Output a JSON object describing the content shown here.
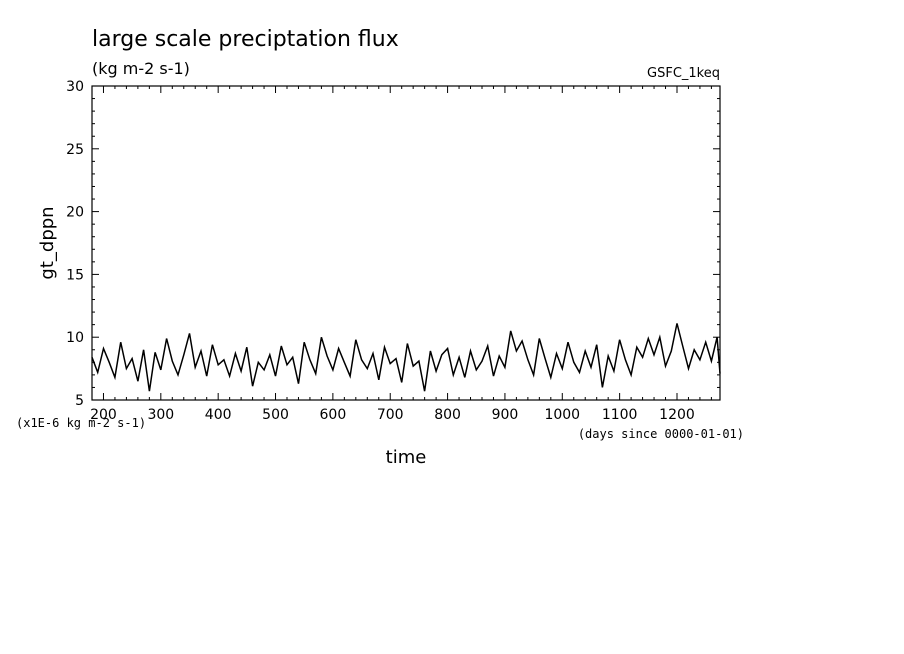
{
  "chart_data": {
    "type": "line",
    "title": "large scale preciptation flux",
    "subtitle": "(kg m-2 s-1)",
    "tag": "GSFC_1keq",
    "xlabel": "time",
    "ylabel": "gt_dppn",
    "x_unit_note": "(days since 0000-01-01)",
    "y_unit_note": "(x1E-6 kg m-2 s-1)",
    "xlim": [
      180,
      1275
    ],
    "ylim": [
      5,
      30
    ],
    "x_ticks": [
      200,
      300,
      400,
      500,
      600,
      700,
      800,
      900,
      1000,
      1100,
      1200
    ],
    "y_ticks": [
      5,
      10,
      15,
      20,
      25,
      30
    ],
    "grid": false,
    "line_color": "#000000",
    "series": [
      {
        "x": [
          180,
          190,
          200,
          210,
          220,
          230,
          240,
          250,
          260,
          270,
          280,
          290,
          300,
          310,
          320,
          330,
          340,
          350,
          360,
          370,
          380,
          390,
          400,
          410,
          420,
          430,
          440,
          450,
          460,
          470,
          480,
          490,
          500,
          510,
          520,
          530,
          540,
          550,
          560,
          570,
          580,
          590,
          600,
          610,
          620,
          630,
          640,
          650,
          660,
          670,
          680,
          690,
          700,
          710,
          720,
          730,
          740,
          750,
          760,
          770,
          780,
          790,
          800,
          810,
          820,
          830,
          840,
          850,
          860,
          870,
          880,
          890,
          900,
          910,
          920,
          930,
          940,
          950,
          960,
          970,
          980,
          990,
          1000,
          1010,
          1020,
          1030,
          1040,
          1050,
          1060,
          1070,
          1080,
          1090,
          1100,
          1110,
          1120,
          1130,
          1140,
          1150,
          1160,
          1170,
          1180,
          1190,
          1200,
          1210,
          1220,
          1230,
          1240,
          1250,
          1260,
          1270,
          1275
        ],
        "y": [
          8.4,
          7.2,
          9.1,
          8.0,
          6.8,
          9.6,
          7.5,
          8.3,
          6.5,
          9.0,
          5.7,
          8.8,
          7.4,
          9.9,
          8.1,
          7.0,
          8.6,
          10.3,
          7.6,
          8.9,
          6.9,
          9.4,
          7.8,
          8.2,
          6.9,
          8.7,
          7.3,
          9.2,
          6.1,
          8.0,
          7.4,
          8.6,
          6.9,
          9.3,
          7.8,
          8.4,
          6.3,
          9.6,
          8.2,
          7.1,
          10.0,
          8.5,
          7.4,
          9.1,
          8.0,
          6.9,
          9.8,
          8.2,
          7.5,
          8.7,
          6.6,
          9.2,
          7.9,
          8.3,
          6.4,
          9.5,
          7.7,
          8.1,
          5.7,
          8.9,
          7.3,
          8.6,
          9.1,
          7.0,
          8.4,
          6.8,
          8.9,
          7.4,
          8.1,
          9.3,
          6.9,
          8.5,
          7.6,
          10.5,
          8.9,
          9.7,
          8.2,
          7.0,
          9.9,
          8.3,
          6.8,
          8.7,
          7.5,
          9.6,
          8.0,
          7.2,
          8.9,
          7.6,
          9.4,
          6.0,
          8.5,
          7.3,
          9.8,
          8.2,
          7.0,
          9.2,
          8.4,
          9.9,
          8.6,
          10.0,
          7.7,
          8.9,
          11.1,
          9.3,
          7.5,
          9.0,
          8.2,
          9.6,
          8.1,
          10.0,
          7.1
        ]
      }
    ]
  }
}
